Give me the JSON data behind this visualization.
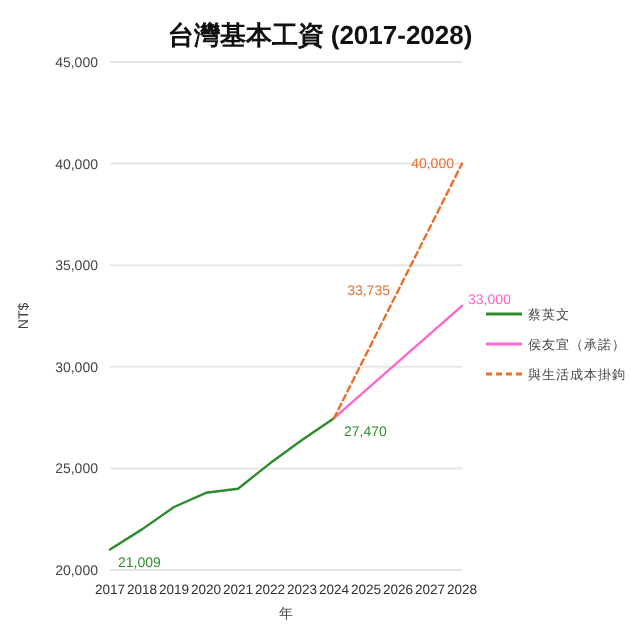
{
  "chart_data": {
    "type": "line",
    "title": "台灣基本工資 (2017-2028)",
    "xlabel": "年",
    "ylabel": "NT$",
    "xlim": [
      2017,
      2028
    ],
    "xticks": [
      2017,
      2018,
      2019,
      2020,
      2021,
      2022,
      2023,
      2024,
      2025,
      2026,
      2027,
      2028
    ],
    "ylim": [
      20000,
      45000
    ],
    "yticks": [
      {
        "value": 20000,
        "label": "20,000"
      },
      {
        "value": 25000,
        "label": "25,000"
      },
      {
        "value": 30000,
        "label": "30,000"
      },
      {
        "value": 35000,
        "label": "35,000"
      },
      {
        "value": 40000,
        "label": "40,000"
      },
      {
        "value": 45000,
        "label": "45,000"
      }
    ],
    "grid": "y",
    "legend": "right",
    "series": [
      {
        "name": "蔡英文",
        "color": "#2e8b2e",
        "line_style": "solid",
        "x": [
          2017,
          2018,
          2019,
          2020,
          2021,
          2022,
          2023,
          2024
        ],
        "values": [
          21009,
          22000,
          23100,
          23800,
          24000,
          25250,
          26400,
          27470
        ],
        "value_labels": [
          "21,009",
          null,
          null,
          null,
          null,
          null,
          null,
          "27,470"
        ]
      },
      {
        "name": "侯友宜（承諾）",
        "color": "#ff66cc",
        "line_style": "solid",
        "x": [
          2024,
          2028
        ],
        "values": [
          27470,
          33000
        ],
        "value_labels": [
          null,
          "33,000"
        ]
      },
      {
        "name": "與生活成本掛鉤",
        "color": "#e8702a",
        "line_style": "dashed",
        "x": [
          2024,
          2026,
          2028
        ],
        "values": [
          27470,
          33735,
          40000
        ],
        "value_labels": [
          null,
          "33,735",
          "40,000"
        ]
      }
    ]
  }
}
